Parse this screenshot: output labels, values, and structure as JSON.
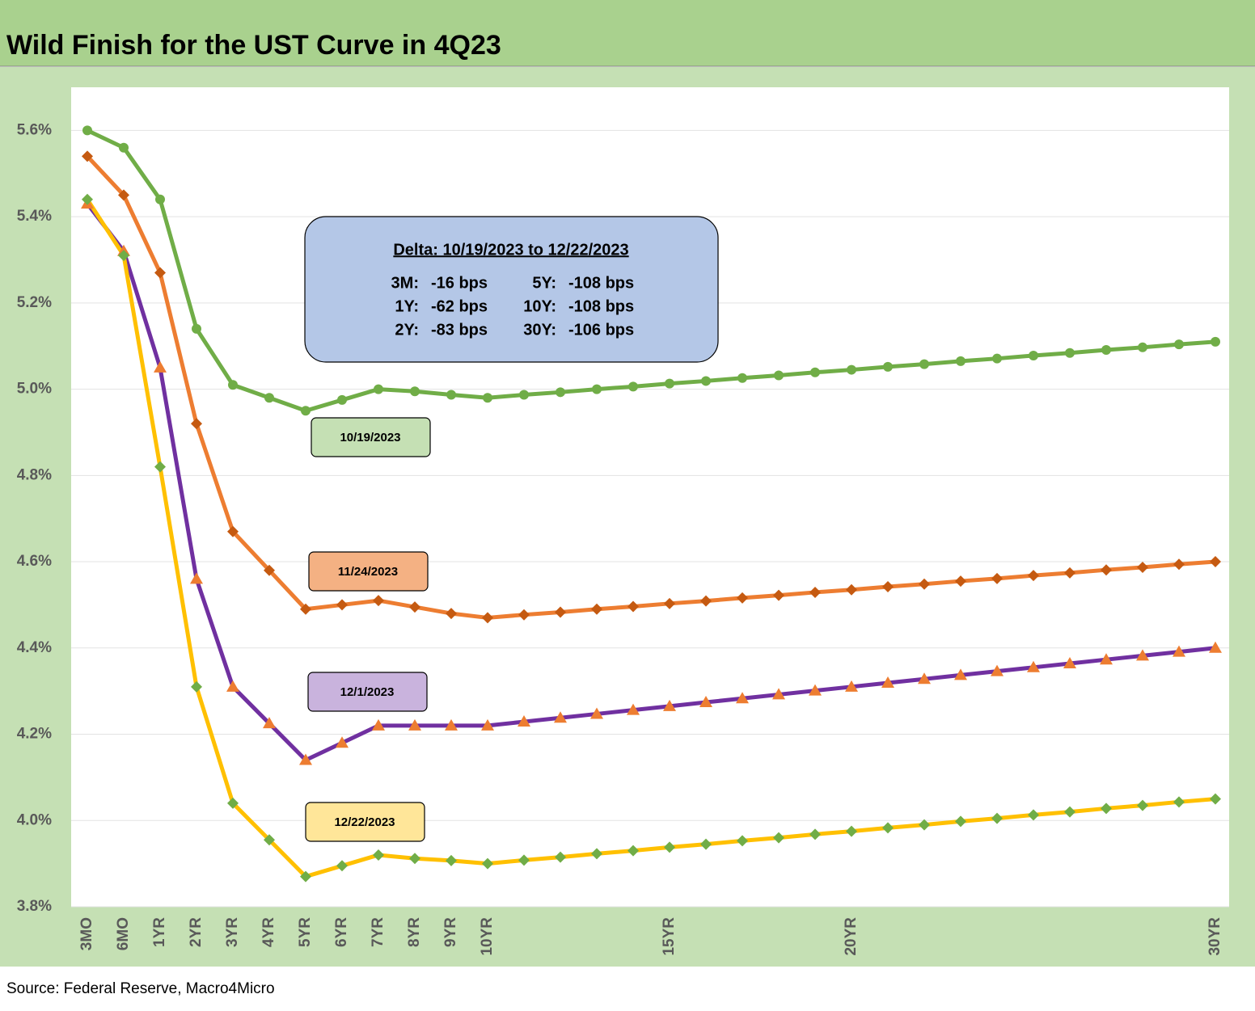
{
  "chart_data": {
    "type": "line",
    "title": "Wild Finish for the UST Curve in 4Q23",
    "source": "Source: Federal Reserve, Macro4Micro",
    "categories": [
      "3MO",
      "6MO",
      "1YR",
      "2YR",
      "3YR",
      "4YR",
      "5YR",
      "6YR",
      "7YR",
      "8YR",
      "9YR",
      "10YR",
      null,
      null,
      null,
      null,
      "15YR",
      null,
      null,
      null,
      null,
      "20YR",
      null,
      null,
      null,
      null,
      null,
      null,
      null,
      null,
      null,
      "30YR"
    ],
    "ylim": [
      3.8,
      5.7
    ],
    "yticks": [
      {
        "value": 3.8,
        "label": "3.8%"
      },
      {
        "value": 4.0,
        "label": "4.0%"
      },
      {
        "value": 4.2,
        "label": "4.2%"
      },
      {
        "value": 4.4,
        "label": "4.4%"
      },
      {
        "value": 4.6,
        "label": "4.6%"
      },
      {
        "value": 4.8,
        "label": "4.8%"
      },
      {
        "value": 5.0,
        "label": "5.0%"
      },
      {
        "value": 5.2,
        "label": "5.2%"
      },
      {
        "value": 5.4,
        "label": "5.4%"
      },
      {
        "value": 5.6,
        "label": "5.6%"
      }
    ],
    "grid": true,
    "series": [
      {
        "name": "10/19/2023",
        "color": "#70ad47",
        "marker": "circle",
        "marker_color": "#70ad47",
        "label_color": "#c5e0b4",
        "values": [
          5.6,
          5.56,
          5.44,
          5.14,
          5.01,
          4.98,
          4.95,
          4.975,
          5.0,
          4.995,
          4.987,
          4.98,
          4.987,
          4.993,
          5.0,
          5.006,
          5.013,
          5.019,
          5.026,
          5.032,
          5.039,
          5.045,
          5.052,
          5.058,
          5.065,
          5.071,
          5.078,
          5.084,
          5.091,
          5.097,
          5.104,
          5.11
        ]
      },
      {
        "name": "11/24/2023",
        "color": "#ed7d31",
        "marker": "diamond",
        "marker_color": "#c55a11",
        "label_color": "#f4b183",
        "values": [
          5.54,
          5.45,
          5.27,
          4.92,
          4.67,
          4.58,
          4.49,
          4.5,
          4.51,
          4.495,
          4.48,
          4.47,
          4.477,
          4.483,
          4.49,
          4.496,
          4.503,
          4.509,
          4.516,
          4.522,
          4.529,
          4.535,
          4.542,
          4.548,
          4.555,
          4.561,
          4.568,
          4.574,
          4.581,
          4.587,
          4.594,
          4.6
        ]
      },
      {
        "name": "12/1/2023",
        "color": "#7030a0",
        "marker": "triangle",
        "marker_color": "#ed7d31",
        "label_color": "#c9b3dd",
        "values": [
          5.43,
          5.32,
          5.05,
          4.56,
          4.31,
          4.225,
          4.14,
          4.18,
          4.22,
          4.22,
          4.22,
          4.22,
          4.229,
          4.238,
          4.247,
          4.256,
          4.265,
          4.274,
          4.283,
          4.292,
          4.301,
          4.31,
          4.319,
          4.328,
          4.337,
          4.346,
          4.355,
          4.364,
          4.373,
          4.382,
          4.391,
          4.4
        ]
      },
      {
        "name": "12/22/2023",
        "color": "#ffc000",
        "marker": "diamond",
        "marker_color": "#70ad47",
        "label_color": "#ffe699",
        "values": [
          5.44,
          5.31,
          4.82,
          4.31,
          4.04,
          3.955,
          3.87,
          3.895,
          3.92,
          3.912,
          3.907,
          3.9,
          3.908,
          3.915,
          3.923,
          3.93,
          3.938,
          3.945,
          3.953,
          3.96,
          3.968,
          3.975,
          3.983,
          3.99,
          3.998,
          4.005,
          4.013,
          4.02,
          4.028,
          4.035,
          4.043,
          4.05
        ]
      }
    ],
    "annotation": {
      "title": "Delta: 10/19/2023 to 12/22/2023",
      "rows": [
        [
          "3M:",
          "-16 bps",
          "5Y:",
          "-108 bps"
        ],
        [
          "1Y:",
          "-62 bps",
          "10Y:",
          "-108 bps"
        ],
        [
          "2Y:",
          "-83 bps",
          "30Y:",
          "-106 bps"
        ]
      ]
    }
  }
}
